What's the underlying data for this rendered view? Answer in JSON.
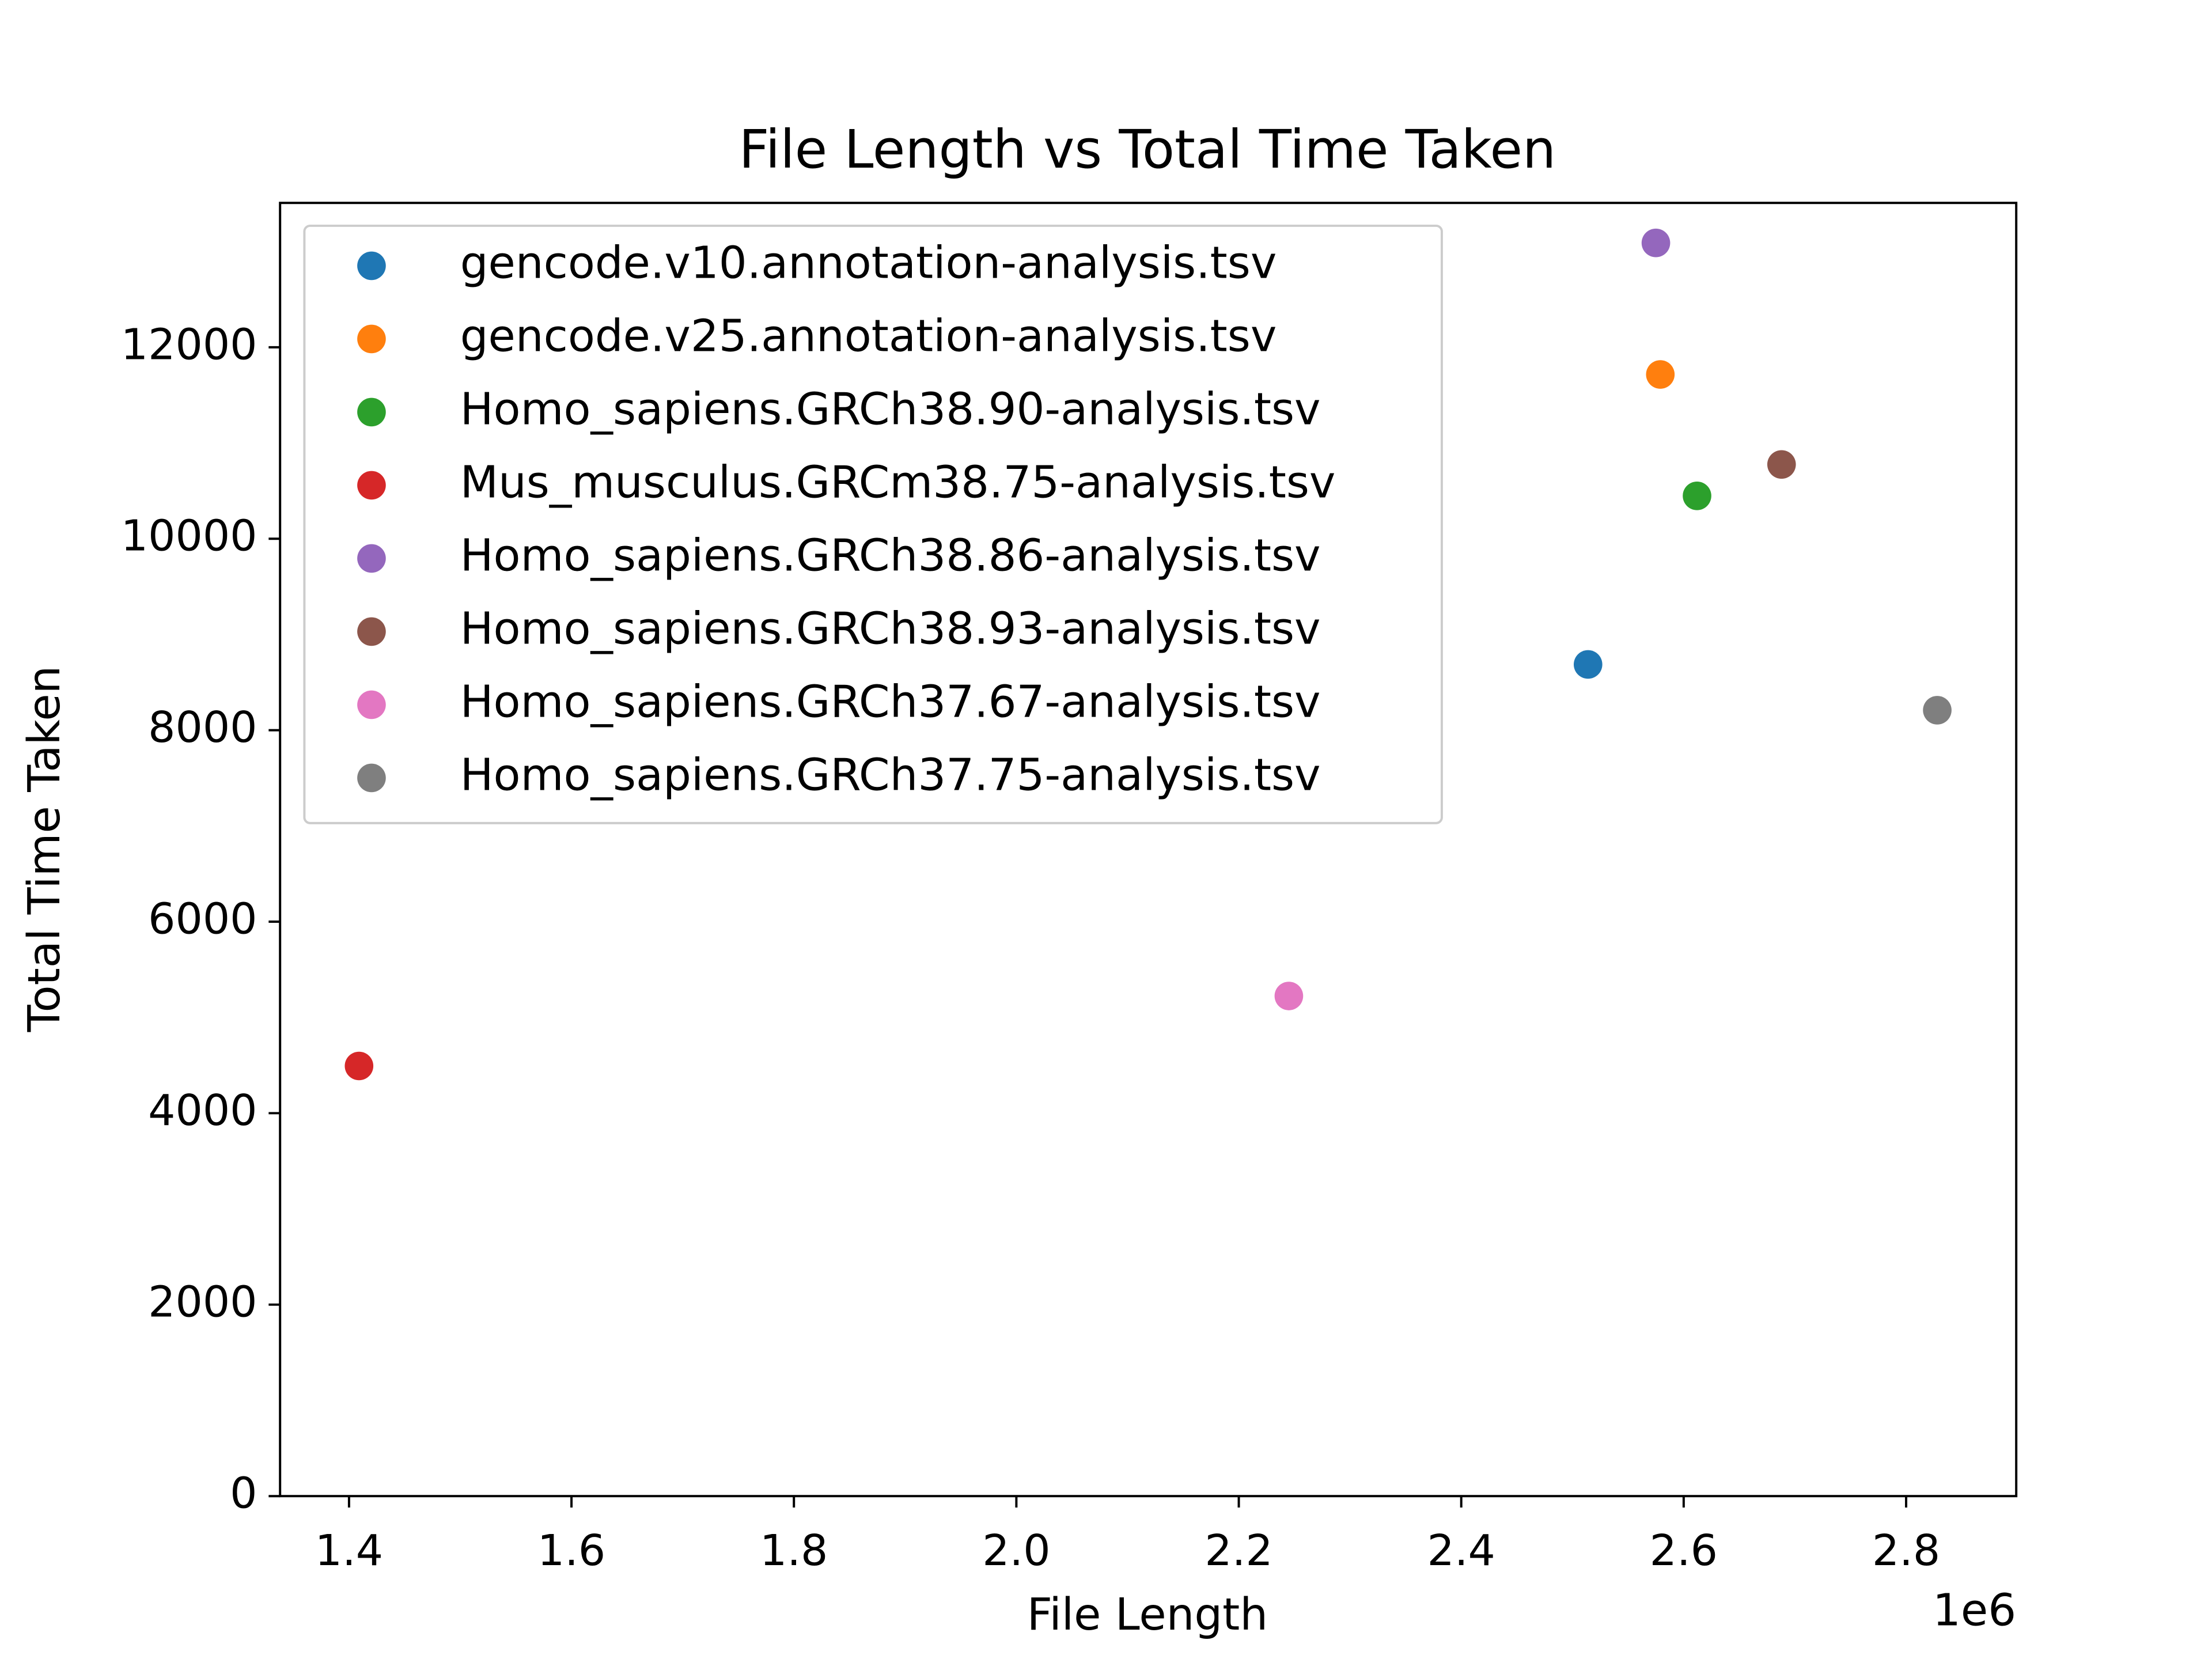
{
  "chart_data": {
    "type": "scatter",
    "title": "File Length vs Total Time Taken",
    "x_label": "File Length",
    "y_label": "Total Time Taken",
    "x_offset_label": "1e6",
    "series": [
      {
        "name": "gencode.v10.annotation-analysis.tsv",
        "color": "#1f77b4",
        "x": [
          2.514
        ],
        "values": [
          8687
        ]
      },
      {
        "name": "gencode.v25.annotation-analysis.tsv",
        "color": "#ff7f0e",
        "x": [
          2.579
        ],
        "values": [
          11716
        ]
      },
      {
        "name": "Homo_sapiens.GRCh38.90-analysis.tsv",
        "color": "#2ca02c",
        "x": [
          2.612
        ],
        "values": [
          10448
        ]
      },
      {
        "name": "Mus_musculus.GRCm38.75-analysis.tsv",
        "color": "#d62728",
        "x": [
          1.409
        ],
        "values": [
          4493
        ]
      },
      {
        "name": "Homo_sapiens.GRCh38.86-analysis.tsv",
        "color": "#9467bd",
        "x": [
          2.575
        ],
        "values": [
          13090
        ]
      },
      {
        "name": "Homo_sapiens.GRCh38.93-analysis.tsv",
        "color": "#8c564b",
        "x": [
          2.688
        ],
        "values": [
          10776
        ]
      },
      {
        "name": "Homo_sapiens.GRCh37.67-analysis.tsv",
        "color": "#e377c2",
        "x": [
          2.245
        ],
        "values": [
          5224
        ]
      },
      {
        "name": "Homo_sapiens.GRCh37.75-analysis.tsv",
        "color": "#7f7f7f",
        "x": [
          2.828
        ],
        "values": [
          8209
        ]
      }
    ],
    "xlim": [
      1.338,
      2.899
    ],
    "ylim": [
      0,
      13508
    ],
    "xticks": [
      1.4,
      1.6,
      1.8,
      {
        "value": 2,
        "label": "2.0"
      },
      2.2,
      2.4,
      2.6,
      2.8
    ],
    "yticks": [
      0,
      2000,
      4000,
      6000,
      8000,
      10000,
      12000
    ],
    "legend": "upper left"
  }
}
